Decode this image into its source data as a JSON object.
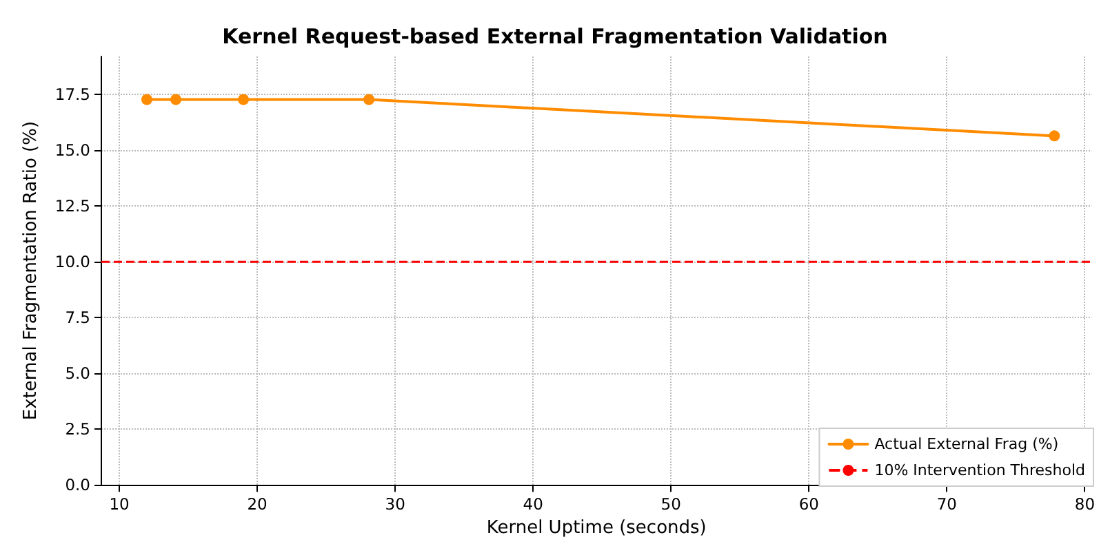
{
  "chart_data": {
    "type": "line",
    "title": "Kernel Request-based External Fragmentation Validation",
    "xlabel": "Kernel Uptime (seconds)",
    "ylabel": "External Fragmentation Ratio (%)",
    "x": [
      12.0,
      14.1,
      19.0,
      28.1,
      77.8
    ],
    "series": [
      {
        "name": "Actual External Frag (%)",
        "color": "#ff8c00",
        "values": [
          17.27,
          17.27,
          17.27,
          17.27,
          15.64
        ]
      }
    ],
    "xlim": [
      8.7,
      80.5
    ],
    "xticks": [
      10,
      20,
      30,
      40,
      50,
      60,
      70,
      80
    ],
    "ylim": [
      0,
      19.2
    ],
    "yticks": [
      {
        "value": 0,
        "label": "0.0"
      },
      {
        "value": 2.5,
        "label": "2.5"
      },
      {
        "value": 5,
        "label": "5.0"
      },
      {
        "value": 7.5,
        "label": "7.5"
      },
      {
        "value": 10,
        "label": "10.0"
      },
      {
        "value": 12.5,
        "label": "12.5"
      },
      {
        "value": 15,
        "label": "15.0"
      },
      {
        "value": 17.5,
        "label": "17.5"
      }
    ],
    "ref_lines": [
      {
        "axis": "y",
        "value": 10,
        "label": "10% Intervention Threshold",
        "color": "#ff0000",
        "line_style": "dashed"
      }
    ],
    "grid": true,
    "legend": "bottom right",
    "marker": "circle",
    "line_style": "solid"
  }
}
